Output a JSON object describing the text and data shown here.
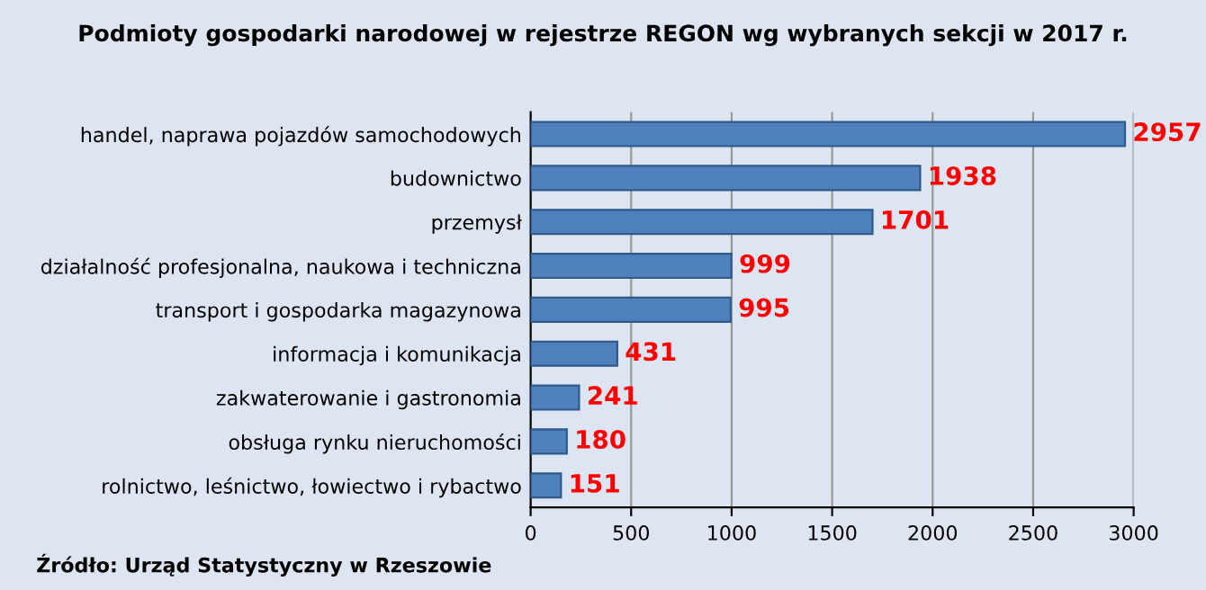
{
  "chart_data": {
    "type": "bar",
    "orientation": "horizontal",
    "title": "Podmioty gospodarki narodowej w rejestrze REGON wg wybranych sekcji w 2017 r.",
    "categories": [
      "handel, naprawa pojazdów samochodowych",
      "budownictwo",
      "przemysł",
      "działalność profesjonalna, naukowa i techniczna",
      "transport i gospodarka magazynowa",
      "informacja i komunikacja",
      "zakwaterowanie i gastronomia",
      "obsługa rynku nieruchomości",
      "rolnictwo, leśnictwo, łowiectwo i rybactwo"
    ],
    "values": [
      2957,
      1938,
      1701,
      999,
      995,
      431,
      241,
      180,
      151
    ],
    "color": "#4f81bd",
    "xlim": [
      0,
      3000
    ],
    "xticks": [
      0,
      500,
      1000,
      1500,
      2000,
      2500,
      3000
    ],
    "grid": "x",
    "data_labels": true,
    "annotations": [
      "Źródło: Urząd Statystyczny w Rzeszowie"
    ]
  }
}
